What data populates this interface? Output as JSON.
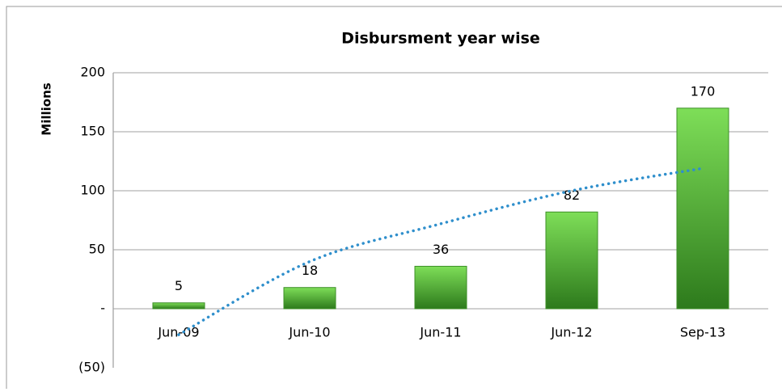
{
  "chart_data": {
    "type": "bar",
    "title": "Disbursment year wise",
    "y_label": "Millions",
    "categories": [
      "Jun-09",
      "Jun-10",
      "Jun-11",
      "Jun-12",
      "Sep-13"
    ],
    "values": [
      5,
      18,
      36,
      82,
      170
    ],
    "color": "#4fb833",
    "ylim": [
      -50,
      200
    ],
    "yticks": [
      {
        "value": -50,
        "label": "(50)"
      },
      {
        "value": 0,
        "label": "-"
      },
      50,
      100,
      150,
      200
    ],
    "grid": true,
    "trendline": {
      "color": "#2f8fcc",
      "values": [
        -22,
        40,
        72,
        100,
        119
      ]
    }
  }
}
